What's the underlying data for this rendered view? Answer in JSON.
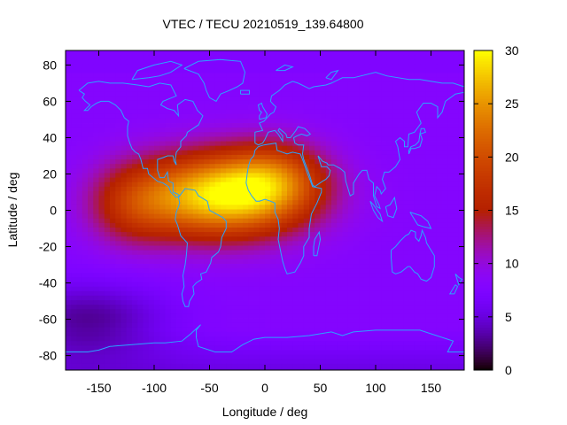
{
  "chart_data": {
    "type": "heatmap",
    "title": "VTEC / TECU 20210519_139.64800",
    "xlabel": "Longitude / deg",
    "ylabel": "Latitude / deg",
    "xlim": [
      -180,
      180
    ],
    "ylim": [
      -88,
      88
    ],
    "xticks": [
      -150,
      -100,
      -50,
      0,
      50,
      100,
      150
    ],
    "yticks": [
      80,
      60,
      40,
      20,
      0,
      -20,
      -40,
      -60,
      -80
    ],
    "colorbar": {
      "range": [
        0,
        30
      ],
      "ticks": [
        0,
        5,
        10,
        15,
        20,
        25,
        30
      ]
    },
    "grid_resolution": {
      "lon_step": 5,
      "lat_step": 2.5
    },
    "tec_features": {
      "background_tecu": 8,
      "peak": {
        "lon": -40,
        "lat": 8,
        "value_tecu": 29
      },
      "crest_band_tecu": 25,
      "southern_minimum": {
        "lon": -160,
        "lat": -60,
        "value_tecu": 3
      },
      "polar_south_tecu": 4
    },
    "overlay": "coastlines"
  },
  "colors": {
    "coastline": "#2aa4ff",
    "palette": "black-purple-red-orange-yellow"
  }
}
